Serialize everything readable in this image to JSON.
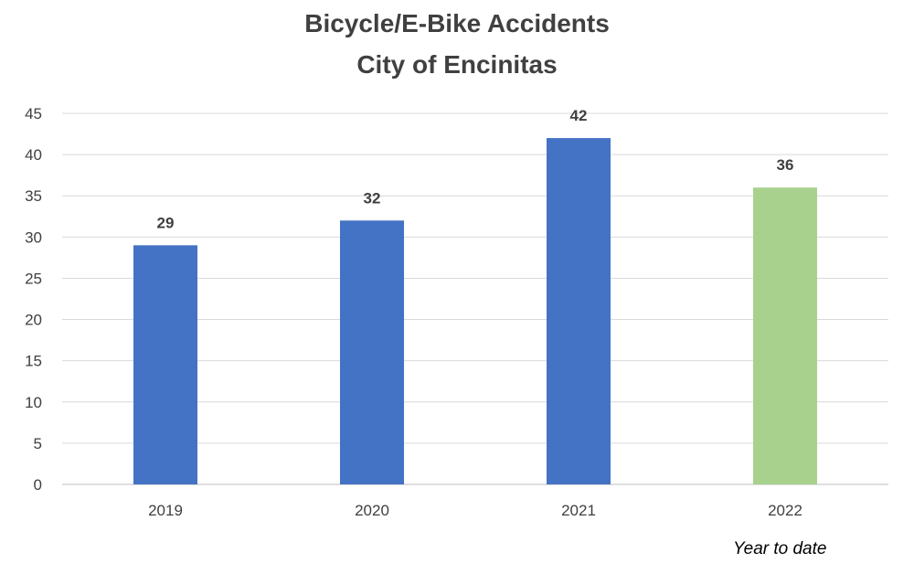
{
  "chart_data": {
    "type": "bar",
    "title": "Bicycle/E-Bike Accidents",
    "subtitle": "City of Encinitas",
    "categories": [
      "2019",
      "2020",
      "2021",
      "2022"
    ],
    "values": [
      29,
      32,
      42,
      36
    ],
    "bar_colors": [
      "#4472C4",
      "#4472C4",
      "#4472C4",
      "#A9D18E"
    ],
    "ylim": [
      0,
      45
    ],
    "yticks": [
      0,
      5,
      10,
      15,
      20,
      25,
      30,
      35,
      40,
      45
    ],
    "grid": true,
    "annotation": "Year to date",
    "xlabel": "",
    "ylabel": ""
  }
}
